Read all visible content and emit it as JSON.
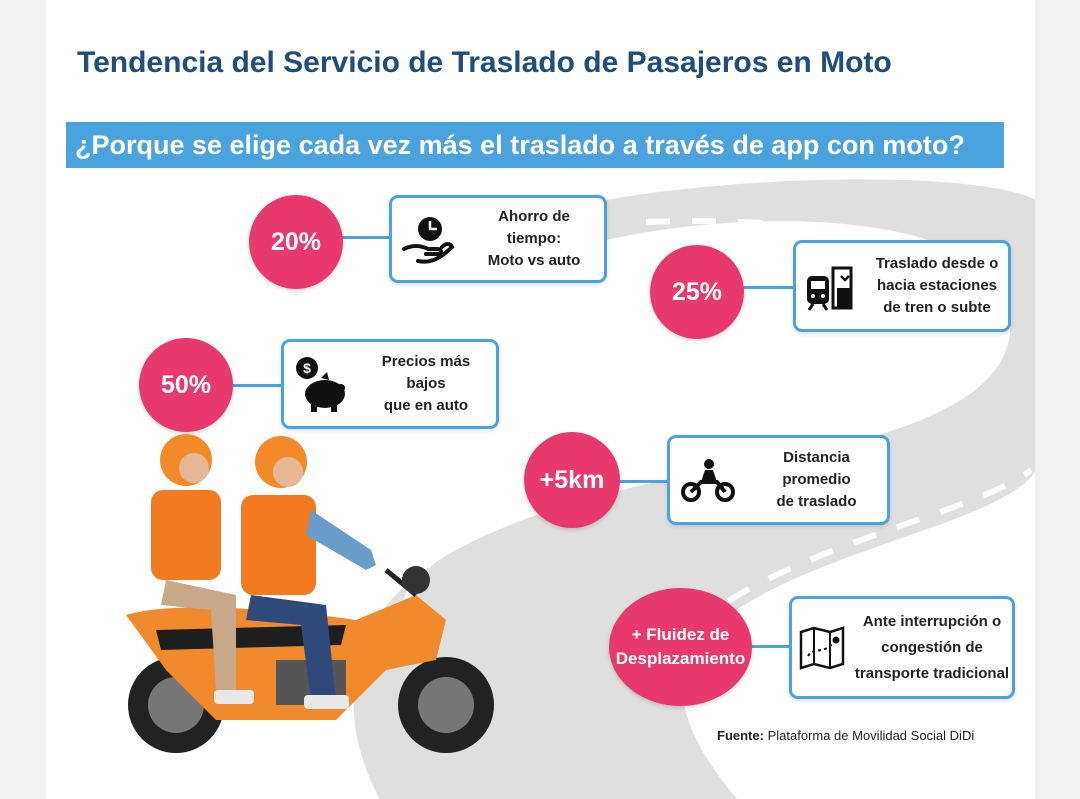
{
  "title": "Tendencia del Servicio de Traslado de Pasajeros en Moto",
  "subtitle": "¿Porque se elige cada vez más el traslado a través de app con moto?",
  "colors": {
    "title": "#1f4e79",
    "banner": "#4aa3dd",
    "circle": "#e8396e",
    "road": "#d6d6d6",
    "text": "#222222"
  },
  "stats": [
    {
      "value": "20%",
      "icon": "hand-clock-icon",
      "lines": [
        "Ahorro de",
        "tiempo:",
        "Moto vs auto"
      ]
    },
    {
      "value": "25%",
      "icon": "train-station-icon",
      "lines": [
        "Traslado desde o",
        "hacia estaciones",
        "de tren o subte"
      ]
    },
    {
      "value": "50%",
      "icon": "piggy-bank-dollar-icon",
      "lines": [
        "Precios más",
        "bajos",
        "que en auto"
      ]
    },
    {
      "value": "+5km",
      "icon": "motorcycle-rider-icon",
      "lines": [
        "Distancia",
        "promedio",
        "de traslado"
      ]
    },
    {
      "value_lines": [
        "+ Fluidez de",
        "Desplazamiento"
      ],
      "icon": "map-route-icon",
      "lines": [
        "Ante interrupción o",
        "congestión de",
        "transporte tradicional"
      ]
    }
  ],
  "source": {
    "label": "Fuente:",
    "text": "Plataforma de Movilidad Social DiDi"
  }
}
